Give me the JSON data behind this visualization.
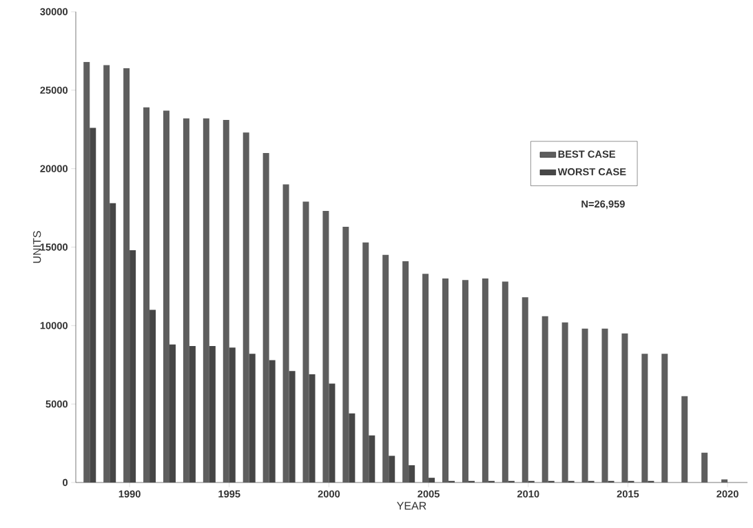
{
  "chart_data": {
    "type": "bar",
    "xlabel": "YEAR",
    "ylabel": "UNITS",
    "x": [
      1988,
      1989,
      1990,
      1991,
      1992,
      1993,
      1994,
      1995,
      1996,
      1997,
      1998,
      1999,
      2000,
      2001,
      2002,
      2003,
      2004,
      2005,
      2006,
      2007,
      2008,
      2009,
      2010,
      2011,
      2012,
      2013,
      2014,
      2015,
      2016,
      2017,
      2018,
      2019,
      2020
    ],
    "series": [
      {
        "name": "BEST CASE",
        "color": "#5e5e5e",
        "values": [
          26800,
          26600,
          26400,
          23900,
          23700,
          23200,
          23200,
          23100,
          22300,
          21000,
          19000,
          17900,
          17300,
          16300,
          15300,
          14500,
          14100,
          13300,
          13000,
          12900,
          13000,
          12800,
          11800,
          10600,
          10200,
          9800,
          9800,
          9500,
          8200,
          8200,
          5500,
          1900,
          200
        ]
      },
      {
        "name": "WORST CASE",
        "color": "#464646",
        "values": [
          22600,
          17800,
          14800,
          11000,
          8800,
          8700,
          8700,
          8600,
          8200,
          7800,
          7100,
          6900,
          6300,
          4400,
          3000,
          1700,
          1100,
          300,
          100,
          100,
          100,
          100,
          100,
          100,
          100,
          100,
          100,
          100,
          100,
          0,
          0,
          0,
          0
        ]
      }
    ],
    "xlim": [
      1987.3,
      2021
    ],
    "ylim": [
      0,
      30000
    ],
    "xticks": [
      1990,
      1995,
      2000,
      2005,
      2010,
      2015,
      2020
    ],
    "yticks": [
      0,
      5000,
      10000,
      15000,
      20000,
      25000,
      30000
    ],
    "legend": "top right",
    "annotations": [
      "N=26,959"
    ]
  }
}
